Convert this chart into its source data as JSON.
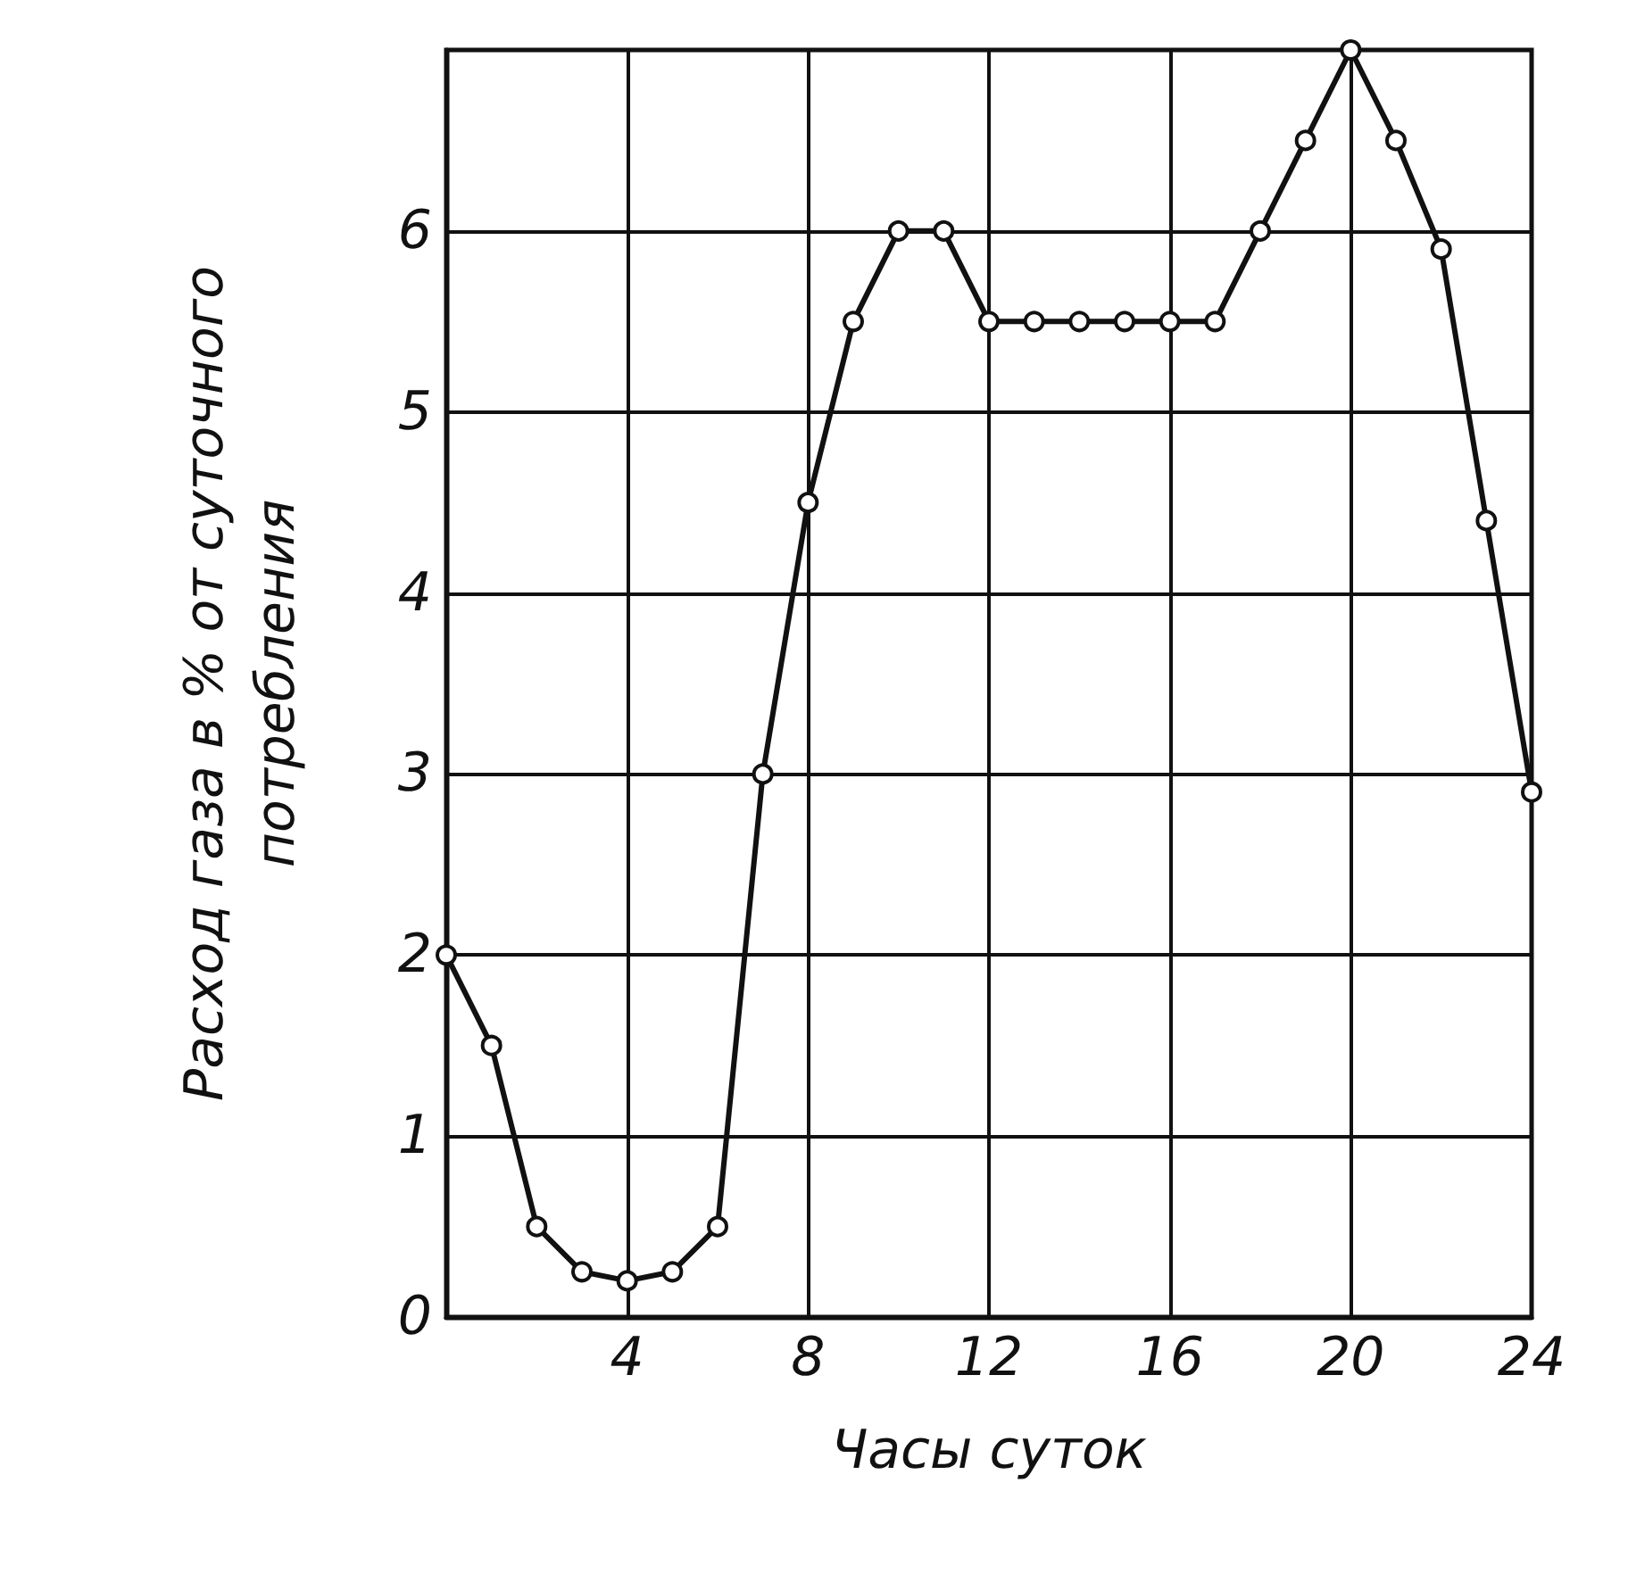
{
  "chart_data": {
    "type": "line",
    "xlabel": "Часы суток",
    "ylabel": "Расход газа в % от суточного\nпотребления",
    "x": [
      0,
      1,
      2,
      3,
      4,
      5,
      6,
      7,
      8,
      9,
      10,
      11,
      12,
      13,
      14,
      15,
      16,
      17,
      18,
      19,
      20,
      21,
      22,
      23,
      24
    ],
    "series": [
      {
        "color": "#111111",
        "values": [
          2,
          1.5,
          0.5,
          0.25,
          0.2,
          0.25,
          0.5,
          3,
          4.5,
          5.5,
          6,
          6,
          5.5,
          5.5,
          5.5,
          5.5,
          5.5,
          5.5,
          6,
          6.5,
          7,
          6.5,
          5.9,
          4.4,
          2.9
        ]
      }
    ],
    "xlim": [
      0,
      24
    ],
    "xticks": [
      {
        "value": 0,
        "label": null
      },
      4,
      8,
      12,
      16,
      20,
      24
    ],
    "ylim": [
      0,
      7
    ],
    "yticks": [
      0,
      1,
      2,
      3,
      4,
      5,
      6
    ],
    "grid": true,
    "marker": "circle",
    "line_style": "solid"
  }
}
